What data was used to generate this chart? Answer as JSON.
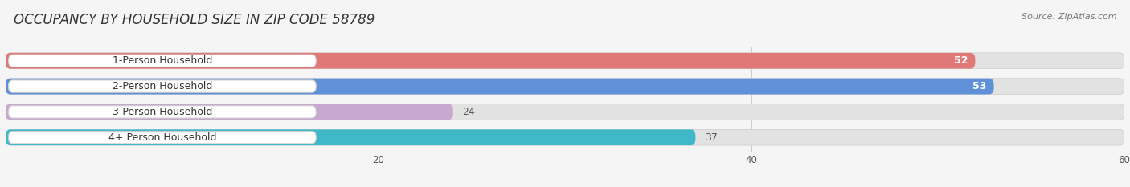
{
  "title": "OCCUPANCY BY HOUSEHOLD SIZE IN ZIP CODE 58789",
  "source": "Source: ZipAtlas.com",
  "categories": [
    "1-Person Household",
    "2-Person Household",
    "3-Person Household",
    "4+ Person Household"
  ],
  "values": [
    52,
    53,
    24,
    37
  ],
  "bar_colors": [
    "#E07878",
    "#6090D8",
    "#C8A8D0",
    "#40B8C8"
  ],
  "xlim_data": [
    0,
    60
  ],
  "xticks": [
    20,
    40,
    60
  ],
  "bar_height": 0.62,
  "background_color": "#f5f5f5",
  "bar_bg_color": "#e2e2e2",
  "title_fontsize": 12,
  "label_fontsize": 9,
  "value_fontsize": 9,
  "source_fontsize": 8,
  "value_inside": [
    true,
    true,
    false,
    false
  ]
}
